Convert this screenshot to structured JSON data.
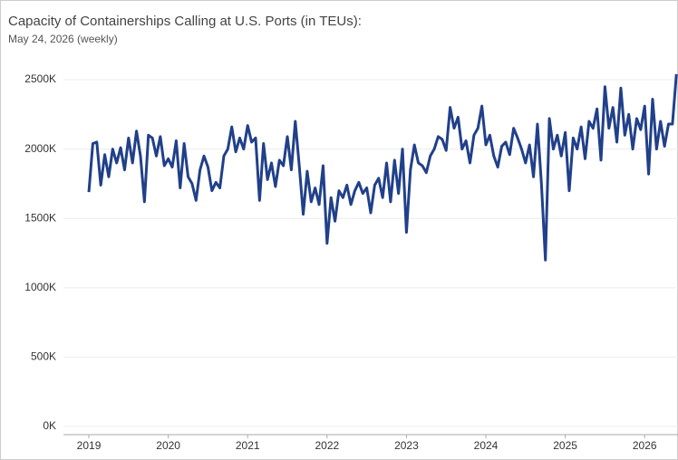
{
  "chart_data": {
    "type": "line",
    "title": "Capacity of Containerships Calling at U.S. Ports (in TEUs):",
    "subtitle": "May 24, 2026 (weekly)",
    "xlim": [
      2018.68,
      2026.42
    ],
    "xticks": [
      2019,
      2020,
      2021,
      2022,
      2023,
      2024,
      2025,
      2026
    ],
    "ylim": [
      0,
      2700000
    ],
    "yticks": [
      {
        "value": 0,
        "label": "0K"
      },
      {
        "value": 500000,
        "label": "500K"
      },
      {
        "value": 1000000,
        "label": "1000K"
      },
      {
        "value": 1500000,
        "label": "1500K"
      },
      {
        "value": 2000000,
        "label": "2000K"
      },
      {
        "value": 2500000,
        "label": "2500K"
      }
    ],
    "grid": true,
    "x": [
      2019.0,
      2019.05,
      2019.1,
      2019.15,
      2019.2,
      2019.25,
      2019.3,
      2019.35,
      2019.4,
      2019.45,
      2019.5,
      2019.55,
      2019.6,
      2019.65,
      2019.7,
      2019.75,
      2019.8,
      2019.85,
      2019.9,
      2019.95,
      2020.0,
      2020.05,
      2020.1,
      2020.15,
      2020.2,
      2020.25,
      2020.3,
      2020.35,
      2020.4,
      2020.45,
      2020.5,
      2020.55,
      2020.6,
      2020.65,
      2020.7,
      2020.75,
      2020.8,
      2020.85,
      2020.9,
      2020.95,
      2021.0,
      2021.05,
      2021.1,
      2021.15,
      2021.2,
      2021.25,
      2021.3,
      2021.35,
      2021.4,
      2021.45,
      2021.5,
      2021.55,
      2021.6,
      2021.65,
      2021.7,
      2021.75,
      2021.8,
      2021.85,
      2021.9,
      2021.95,
      2022.0,
      2022.05,
      2022.1,
      2022.15,
      2022.2,
      2022.25,
      2022.3,
      2022.35,
      2022.4,
      2022.45,
      2022.5,
      2022.55,
      2022.6,
      2022.65,
      2022.7,
      2022.75,
      2022.8,
      2022.85,
      2022.9,
      2022.95,
      2023.0,
      2023.05,
      2023.1,
      2023.15,
      2023.2,
      2023.25,
      2023.3,
      2023.35,
      2023.4,
      2023.45,
      2023.5,
      2023.55,
      2023.6,
      2023.65,
      2023.7,
      2023.75,
      2023.8,
      2023.85,
      2023.9,
      2023.95,
      2024.0,
      2024.05,
      2024.1,
      2024.15,
      2024.2,
      2024.25,
      2024.3,
      2024.35,
      2024.4,
      2024.45,
      2024.5,
      2024.55,
      2024.6,
      2024.65,
      2024.7,
      2024.75,
      2024.8,
      2024.85,
      2024.9,
      2024.95,
      2025.0,
      2025.05,
      2025.1,
      2025.15,
      2025.2,
      2025.25,
      2025.3,
      2025.35,
      2025.4,
      2025.45,
      2025.5,
      2025.55,
      2025.6,
      2025.65,
      2025.7,
      2025.75,
      2025.8,
      2025.85,
      2025.9,
      2025.95,
      2026.0,
      2026.05,
      2026.1,
      2026.15,
      2026.2,
      2026.25,
      2026.3,
      2026.35,
      2026.4
    ],
    "series": [
      {
        "color": "#21408a",
        "values": [
          1690000,
          2040000,
          2050000,
          1740000,
          1960000,
          1800000,
          2000000,
          1900000,
          2010000,
          1850000,
          2080000,
          1900000,
          2130000,
          1950000,
          1620000,
          2100000,
          2080000,
          1950000,
          2090000,
          1880000,
          1930000,
          1870000,
          2060000,
          1720000,
          2040000,
          1800000,
          1750000,
          1630000,
          1850000,
          1950000,
          1870000,
          1700000,
          1760000,
          1720000,
          1950000,
          2000000,
          2160000,
          1980000,
          2080000,
          2000000,
          2170000,
          2050000,
          2080000,
          1630000,
          2040000,
          1780000,
          1900000,
          1730000,
          1920000,
          1880000,
          2090000,
          1850000,
          2200000,
          1880000,
          1530000,
          1840000,
          1620000,
          1720000,
          1600000,
          1880000,
          1320000,
          1650000,
          1480000,
          1700000,
          1650000,
          1740000,
          1600000,
          1700000,
          1760000,
          1680000,
          1720000,
          1540000,
          1740000,
          1790000,
          1650000,
          1900000,
          1620000,
          1920000,
          1680000,
          2000000,
          1400000,
          1850000,
          2030000,
          1900000,
          1880000,
          1830000,
          1950000,
          2000000,
          2090000,
          2070000,
          1990000,
          2300000,
          2150000,
          2230000,
          2000000,
          2060000,
          1900000,
          2100000,
          2150000,
          2310000,
          2030000,
          2100000,
          1950000,
          1870000,
          2020000,
          2050000,
          1960000,
          2150000,
          2080000,
          2000000,
          1900000,
          2030000,
          1800000,
          2180000,
          1750000,
          1200000,
          2220000,
          2000000,
          2100000,
          1950000,
          2120000,
          1700000,
          2080000,
          2000000,
          2160000,
          1930000,
          2200000,
          2150000,
          2290000,
          1920000,
          2450000,
          2150000,
          2300000,
          2050000,
          2440000,
          2100000,
          2250000,
          2000000,
          2220000,
          2140000,
          2310000,
          1820000,
          2360000,
          2000000,
          2200000,
          2020000,
          2180000,
          2180000,
          2540000
        ]
      }
    ]
  }
}
